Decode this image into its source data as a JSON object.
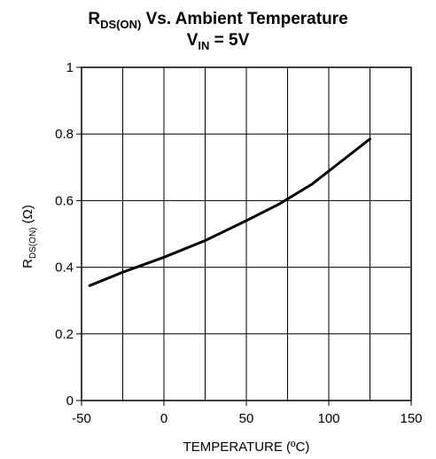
{
  "chart_data": {
    "type": "line",
    "title": {
      "line1": {
        "main": "R",
        "sub": "DS(ON)",
        "rest": " Vs. Ambient Temperature"
      },
      "line2": {
        "main": "V",
        "sub": "IN",
        "rest": " = 5V"
      }
    },
    "xlabel": "TEMPERATURE (ºC)",
    "ylabel": {
      "main": "R",
      "sub": "DS(ON)",
      "rest": " (Ω)"
    },
    "xlim": [
      -50,
      150
    ],
    "ylim": [
      0,
      1
    ],
    "x_ticks": [
      -50,
      0,
      50,
      100,
      150
    ],
    "y_ticks": [
      0,
      0.2,
      0.4,
      0.6,
      0.8,
      1
    ],
    "x_tick_labels": [
      "-50",
      "0",
      "50",
      "100",
      "150"
    ],
    "y_tick_labels": [
      "0",
      "0.2",
      "0.4",
      "0.6",
      "0.8",
      "1"
    ],
    "x_grid": [
      -50,
      -25,
      0,
      25,
      50,
      75,
      100,
      125,
      150
    ],
    "grid": true,
    "series": [
      {
        "x": [
          -45,
          -25,
          0,
          25,
          50,
          70,
          90,
          125
        ],
        "y": [
          0.345,
          0.385,
          0.43,
          0.48,
          0.54,
          0.59,
          0.65,
          0.785
        ]
      }
    ],
    "colors": {
      "line": "#000000",
      "grid": "#000000",
      "background": "#ffffff"
    }
  }
}
